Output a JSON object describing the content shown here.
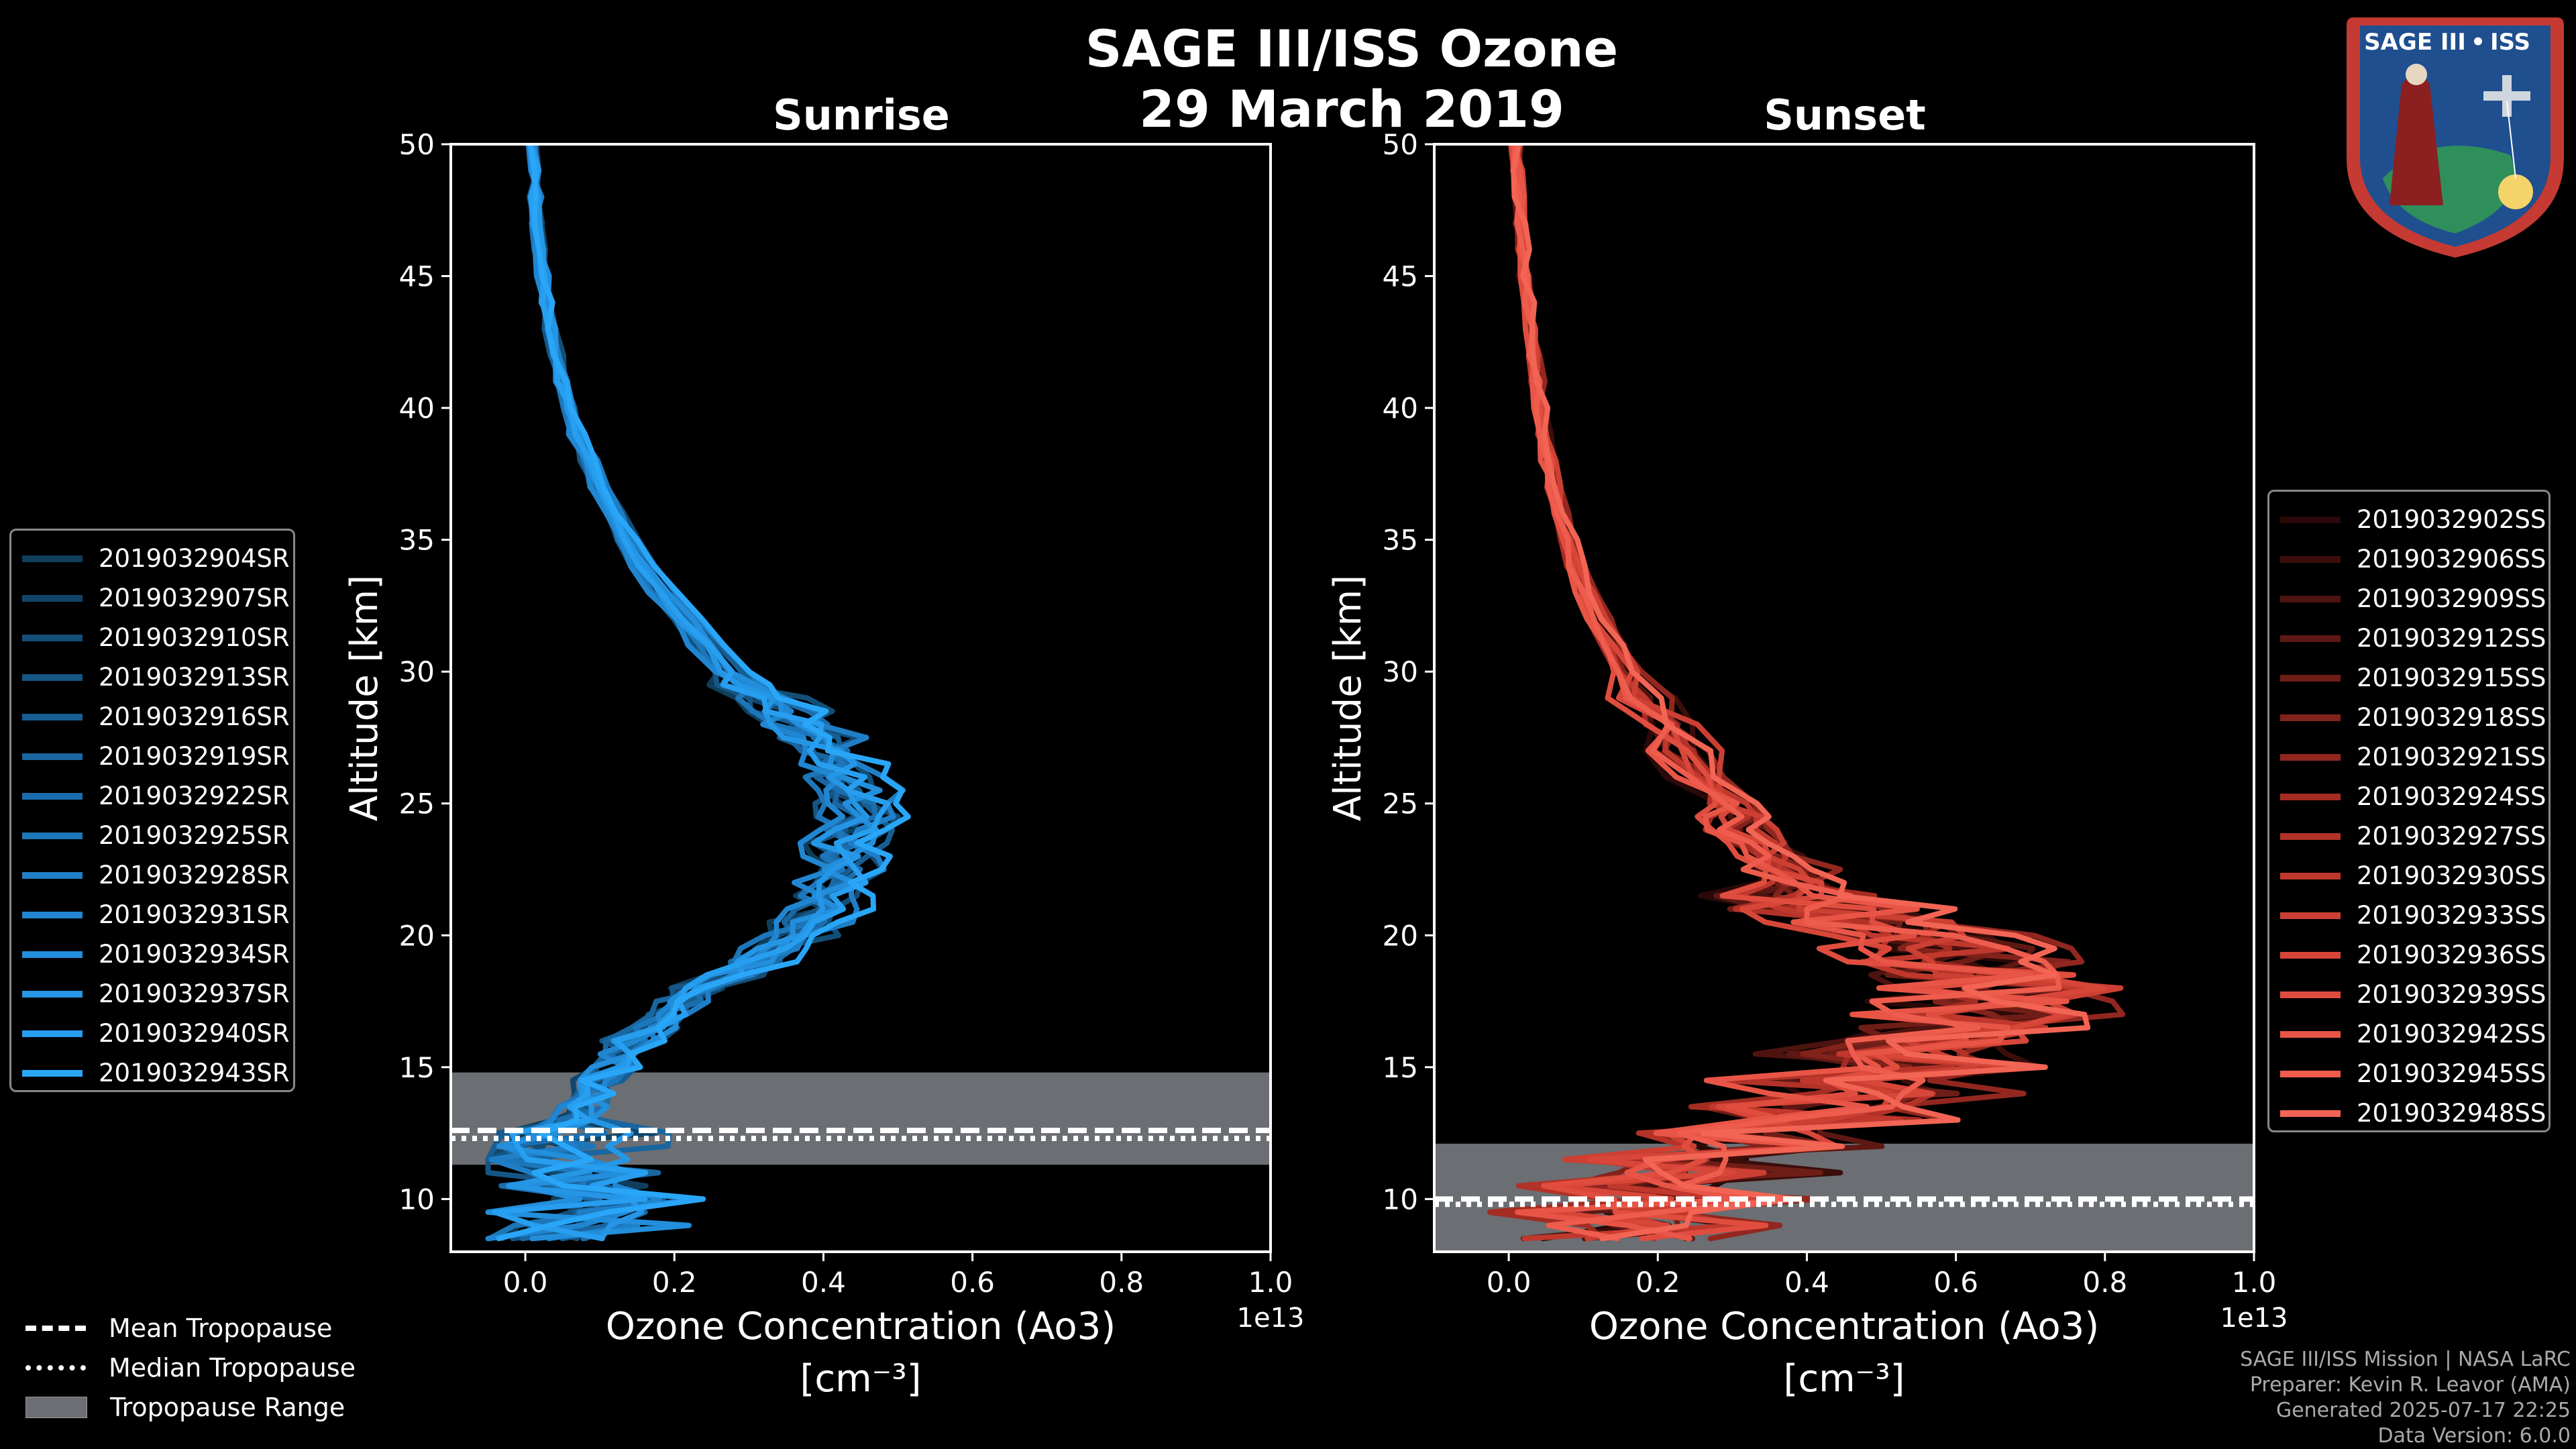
{
  "figure": {
    "title_line1": "SAGE III/ISS Ozone",
    "title_line2": "29 March 2019",
    "credits": [
      "SAGE III/ISS Mission | NASA LaRC",
      "Preparer: Kevin R. Leavor (AMA)",
      "Generated 2025-07-17 22:25",
      "Data Version: 6.0.0"
    ],
    "logo": {
      "line1": "SAGE III",
      "separator": "•",
      "line2": "ISS"
    },
    "tropopause_legend": [
      "Mean Tropopause",
      "Median Tropopause",
      "Tropopause Range"
    ]
  },
  "chart_data": [
    {
      "type": "line",
      "title": "Sunrise",
      "xlabel": "Ozone Concentration (Ao3)",
      "xlabel_units": "[cm$^{-3}$]",
      "xlabel_units_display": "[cm⁻³]",
      "ylabel": "Altitude [km]",
      "xlim": [
        -0.1,
        1.0
      ],
      "ylim": [
        8,
        50
      ],
      "x_scale_label": "1e13",
      "xticks": [
        0.0,
        0.2,
        0.4,
        0.6,
        0.8,
        1.0
      ],
      "xtick_labels": [
        "0.0",
        "0.2",
        "0.4",
        "0.6",
        "0.8",
        "1.0"
      ],
      "yticks": [
        10,
        15,
        20,
        25,
        30,
        35,
        40,
        45,
        50
      ],
      "ytick_labels": [
        "10",
        "15",
        "20",
        "25",
        "30",
        "35",
        "40",
        "45",
        "50"
      ],
      "tropopause": {
        "mean": 12.6,
        "median": 12.3,
        "range": [
          11.3,
          14.8
        ]
      },
      "series": [
        {
          "name": "2019032904SR",
          "color": "#0f3e5c"
        },
        {
          "name": "2019032907SR",
          "color": "#11466a"
        },
        {
          "name": "2019032910SR",
          "color": "#134e77"
        },
        {
          "name": "2019032913SR",
          "color": "#155685"
        },
        {
          "name": "2019032916SR",
          "color": "#175e92"
        },
        {
          "name": "2019032919SR",
          "color": "#1966a0"
        },
        {
          "name": "2019032922SR",
          "color": "#1b6ead"
        },
        {
          "name": "2019032925SR",
          "color": "#1d76ba"
        },
        {
          "name": "2019032928SR",
          "color": "#1f7ec6"
        },
        {
          "name": "2019032931SR",
          "color": "#2186d1"
        },
        {
          "name": "2019032934SR",
          "color": "#238edb"
        },
        {
          "name": "2019032937SR",
          "color": "#2596e5"
        },
        {
          "name": "2019032940SR",
          "color": "#279eef"
        },
        {
          "name": "2019032943SR",
          "color": "#29a6f8"
        }
      ],
      "profile_template": [
        [
          8.5,
          0.03
        ],
        [
          9,
          0.08
        ],
        [
          9.5,
          0.04
        ],
        [
          10,
          0.1
        ],
        [
          10.5,
          0.05
        ],
        [
          11,
          0.04
        ],
        [
          11.5,
          0.03
        ],
        [
          12,
          0.05
        ],
        [
          12.5,
          0.06
        ],
        [
          13,
          0.07
        ],
        [
          13.5,
          0.08
        ],
        [
          14,
          0.09
        ],
        [
          14.5,
          0.1
        ],
        [
          15,
          0.12
        ],
        [
          15.5,
          0.13
        ],
        [
          16,
          0.15
        ],
        [
          16.5,
          0.17
        ],
        [
          17,
          0.19
        ],
        [
          17.5,
          0.22
        ],
        [
          18,
          0.25
        ],
        [
          18.5,
          0.28
        ],
        [
          19,
          0.31
        ],
        [
          19.5,
          0.34
        ],
        [
          20,
          0.37
        ],
        [
          20.5,
          0.39
        ],
        [
          21,
          0.41
        ],
        [
          21.5,
          0.42
        ],
        [
          22,
          0.43
        ],
        [
          22.5,
          0.43
        ],
        [
          23,
          0.44
        ],
        [
          23.5,
          0.44
        ],
        [
          24,
          0.45
        ],
        [
          24.5,
          0.45
        ],
        [
          25,
          0.46
        ],
        [
          25.5,
          0.45
        ],
        [
          26,
          0.44
        ],
        [
          26.5,
          0.43
        ],
        [
          27,
          0.41
        ],
        [
          27.5,
          0.4
        ],
        [
          28,
          0.38
        ],
        [
          28.5,
          0.36
        ],
        [
          29,
          0.33
        ],
        [
          29.5,
          0.3
        ],
        [
          30,
          0.28
        ],
        [
          31,
          0.25
        ],
        [
          32,
          0.22
        ],
        [
          33,
          0.19
        ],
        [
          34,
          0.16
        ],
        [
          35,
          0.14
        ],
        [
          36,
          0.12
        ],
        [
          37,
          0.1
        ],
        [
          38,
          0.085
        ],
        [
          39,
          0.072
        ],
        [
          40,
          0.06
        ],
        [
          41,
          0.05
        ],
        [
          42,
          0.042
        ],
        [
          43,
          0.035
        ],
        [
          44,
          0.03
        ],
        [
          45,
          0.025
        ],
        [
          46,
          0.02
        ],
        [
          47,
          0.017
        ],
        [
          48,
          0.014
        ],
        [
          49,
          0.012
        ],
        [
          50,
          0.01
        ]
      ]
    },
    {
      "type": "line",
      "title": "Sunset",
      "xlabel": "Ozone Concentration (Ao3)",
      "xlabel_units": "[cm$^{-3}$]",
      "xlabel_units_display": "[cm⁻³]",
      "ylabel": "Altitude [km]",
      "xlim": [
        -0.1,
        1.0
      ],
      "ylim": [
        8,
        50
      ],
      "x_scale_label": "1e13",
      "xticks": [
        0.0,
        0.2,
        0.4,
        0.6,
        0.8,
        1.0
      ],
      "xtick_labels": [
        "0.0",
        "0.2",
        "0.4",
        "0.6",
        "0.8",
        "1.0"
      ],
      "yticks": [
        10,
        15,
        20,
        25,
        30,
        35,
        40,
        45,
        50
      ],
      "ytick_labels": [
        "10",
        "15",
        "20",
        "25",
        "30",
        "35",
        "40",
        "45",
        "50"
      ],
      "tropopause": {
        "mean": 10.0,
        "median": 9.8,
        "range": [
          8,
          12.1
        ]
      },
      "series": [
        {
          "name": "2019032902SS",
          "color": "#2a0908"
        },
        {
          "name": "2019032906SS",
          "color": "#3b0e0b"
        },
        {
          "name": "2019032909SS",
          "color": "#4c130f"
        },
        {
          "name": "2019032912SS",
          "color": "#5e1813"
        },
        {
          "name": "2019032915SS",
          "color": "#6f1d17"
        },
        {
          "name": "2019032918SS",
          "color": "#81221b"
        },
        {
          "name": "2019032921SS",
          "color": "#92271f"
        },
        {
          "name": "2019032924SS",
          "color": "#a42c23"
        },
        {
          "name": "2019032927SS",
          "color": "#b33228"
        },
        {
          "name": "2019032930SS",
          "color": "#c0382d"
        },
        {
          "name": "2019032933SS",
          "color": "#cc3f33"
        },
        {
          "name": "2019032936SS",
          "color": "#d74639"
        },
        {
          "name": "2019032939SS",
          "color": "#e04d3f"
        },
        {
          "name": "2019032942SS",
          "color": "#e85546"
        },
        {
          "name": "2019032945SS",
          "color": "#ee5c4d"
        },
        {
          "name": "2019032948SS",
          "color": "#f26454"
        }
      ],
      "profile_template": [
        [
          8.5,
          0.15
        ],
        [
          9,
          0.22
        ],
        [
          9.5,
          0.1
        ],
        [
          10,
          0.25
        ],
        [
          10.5,
          0.15
        ],
        [
          11,
          0.3
        ],
        [
          11.5,
          0.2
        ],
        [
          12,
          0.35
        ],
        [
          12.5,
          0.3
        ],
        [
          13,
          0.45
        ],
        [
          13.5,
          0.4
        ],
        [
          14,
          0.5
        ],
        [
          14.5,
          0.45
        ],
        [
          15,
          0.55
        ],
        [
          15.5,
          0.5
        ],
        [
          16,
          0.6
        ],
        [
          16.5,
          0.62
        ],
        [
          17,
          0.64
        ],
        [
          17.5,
          0.66
        ],
        [
          18,
          0.67
        ],
        [
          18.5,
          0.66
        ],
        [
          19,
          0.63
        ],
        [
          19.5,
          0.58
        ],
        [
          20,
          0.53
        ],
        [
          20.5,
          0.49
        ],
        [
          21,
          0.45
        ],
        [
          21.5,
          0.42
        ],
        [
          22,
          0.4
        ],
        [
          22.5,
          0.38
        ],
        [
          23,
          0.36
        ],
        [
          23.5,
          0.34
        ],
        [
          24,
          0.32
        ],
        [
          24.5,
          0.31
        ],
        [
          25,
          0.3
        ],
        [
          26,
          0.27
        ],
        [
          27,
          0.24
        ],
        [
          28,
          0.21
        ],
        [
          29,
          0.18
        ],
        [
          30,
          0.16
        ],
        [
          31,
          0.14
        ],
        [
          32,
          0.12
        ],
        [
          33,
          0.105
        ],
        [
          34,
          0.09
        ],
        [
          35,
          0.08
        ],
        [
          36,
          0.07
        ],
        [
          37,
          0.062
        ],
        [
          38,
          0.055
        ],
        [
          39,
          0.049
        ],
        [
          40,
          0.043
        ],
        [
          41,
          0.038
        ],
        [
          42,
          0.034
        ],
        [
          43,
          0.03
        ],
        [
          44,
          0.026
        ],
        [
          45,
          0.022
        ],
        [
          46,
          0.019
        ],
        [
          47,
          0.016
        ],
        [
          48,
          0.014
        ],
        [
          49,
          0.012
        ],
        [
          50,
          0.01
        ]
      ]
    }
  ]
}
